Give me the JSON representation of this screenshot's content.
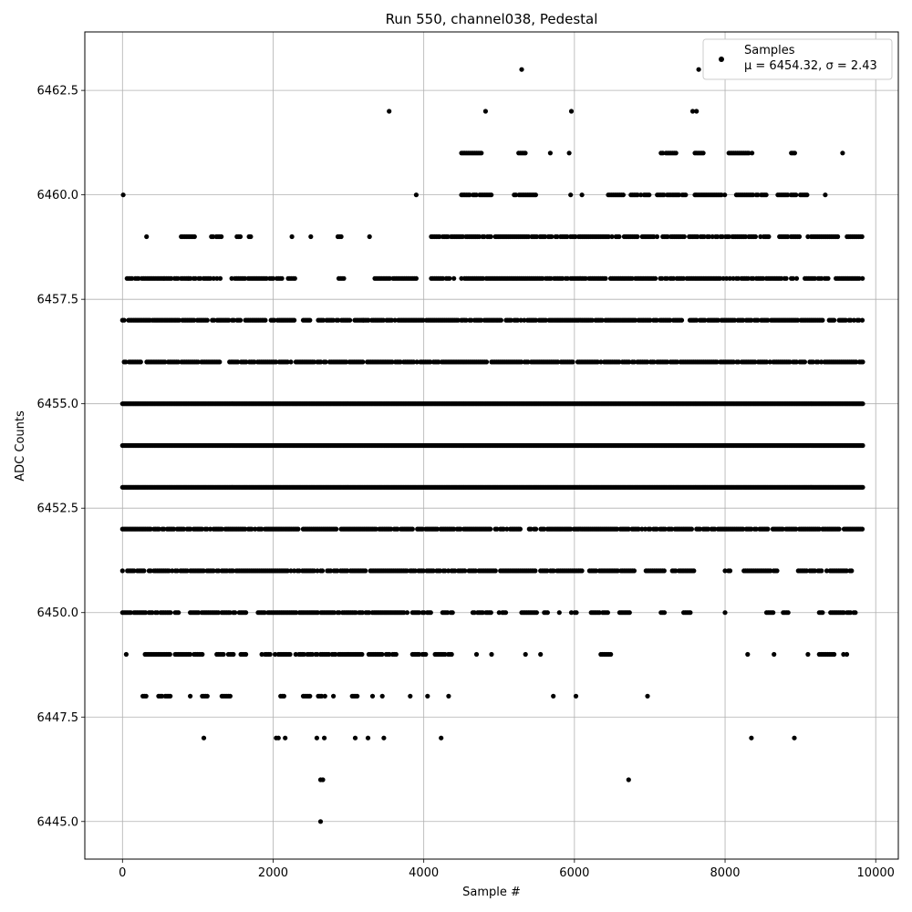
{
  "chart_data": {
    "type": "scatter",
    "title": "Run 550, channel038, Pedestal",
    "xlabel": "Sample #",
    "ylabel": "ADC Counts",
    "xlim": [
      -500,
      10300
    ],
    "ylim": [
      6444.1,
      6463.9
    ],
    "xticks": [
      0,
      2000,
      4000,
      6000,
      8000,
      10000
    ],
    "yticks": [
      6445.0,
      6447.5,
      6450.0,
      6452.5,
      6455.0,
      6457.5,
      6460.0,
      6462.5
    ],
    "xtick_labels": [
      "0",
      "2000",
      "4000",
      "6000",
      "8000",
      "10000"
    ],
    "ytick_labels": [
      "6445.0",
      "6447.5",
      "6450.0",
      "6452.5",
      "6455.0",
      "6457.5",
      "6460.0",
      "6462.5"
    ],
    "grid": true,
    "legend": {
      "position": "top-right",
      "entries": [
        "Samples",
        "μ = 6454.32, σ = 2.43"
      ]
    },
    "series": [
      {
        "name": "Samples",
        "color": "#000000",
        "mu": 6454.32,
        "sigma": 2.43,
        "n_samples": 9840,
        "levels_min": 6445,
        "levels_max": 6463
      }
    ],
    "sparse_points": [
      {
        "x": 10,
        "y": 6460
      },
      {
        "x": 5300,
        "y": 6463
      },
      {
        "x": 7650,
        "y": 6463
      },
      {
        "x": 7780,
        "y": 6463
      },
      {
        "x": 3540,
        "y": 6462
      },
      {
        "x": 4820,
        "y": 6462
      },
      {
        "x": 5960,
        "y": 6462
      },
      {
        "x": 7570,
        "y": 6462
      },
      {
        "x": 7620,
        "y": 6462
      },
      {
        "x": 2630,
        "y": 6445
      },
      {
        "x": 2630,
        "y": 6446
      },
      {
        "x": 2660,
        "y": 6446
      },
      {
        "x": 6720,
        "y": 6446
      },
      {
        "x": 1080,
        "y": 6447
      },
      {
        "x": 2040,
        "y": 6447
      },
      {
        "x": 2070,
        "y": 6447
      },
      {
        "x": 2160,
        "y": 6447
      },
      {
        "x": 2580,
        "y": 6447
      },
      {
        "x": 2680,
        "y": 6447
      },
      {
        "x": 3090,
        "y": 6447
      },
      {
        "x": 3260,
        "y": 6447
      },
      {
        "x": 3470,
        "y": 6447
      },
      {
        "x": 4230,
        "y": 6447
      },
      {
        "x": 8350,
        "y": 6447
      },
      {
        "x": 8920,
        "y": 6447
      }
    ],
    "band_ranges": [
      {
        "y": 6461,
        "segments": [
          [
            4500,
            4780
          ],
          [
            5260,
            5360
          ],
          [
            5680,
            5700
          ],
          [
            5930,
            5960
          ],
          [
            7150,
            7350
          ],
          [
            7600,
            7720
          ],
          [
            8050,
            8380
          ],
          [
            8880,
            8930
          ],
          [
            9560,
            9580
          ]
        ]
      },
      {
        "y": 6460,
        "segments": [
          [
            3900,
            3920
          ],
          [
            4500,
            4700
          ],
          [
            4720,
            4900
          ],
          [
            5200,
            5520
          ],
          [
            5950,
            5970
          ],
          [
            6100,
            6120
          ],
          [
            6450,
            6650
          ],
          [
            6750,
            7000
          ],
          [
            7100,
            7280
          ],
          [
            7300,
            7480
          ],
          [
            7600,
            8000
          ],
          [
            8150,
            8550
          ],
          [
            8700,
            8960
          ],
          [
            9000,
            9100
          ],
          [
            9330,
            9360
          ]
        ]
      },
      {
        "y": 6459,
        "segments": [
          [
            320,
            340
          ],
          [
            780,
            960
          ],
          [
            1180,
            1320
          ],
          [
            1520,
            1580
          ],
          [
            1680,
            1720
          ],
          [
            2250,
            2270
          ],
          [
            2500,
            2520
          ],
          [
            2860,
            2920
          ],
          [
            3280,
            3300
          ],
          [
            4100,
            4520
          ],
          [
            4560,
            4900
          ],
          [
            4950,
            5700
          ],
          [
            5750,
            6500
          ],
          [
            6550,
            6850
          ],
          [
            6900,
            7100
          ],
          [
            7150,
            8600
          ],
          [
            8700,
            9000
          ],
          [
            9100,
            9500
          ],
          [
            9620,
            9830
          ]
        ]
      },
      {
        "y": 6458,
        "segments": [
          [
            60,
            560
          ],
          [
            560,
            880
          ],
          [
            880,
            1300
          ],
          [
            1450,
            2000
          ],
          [
            2050,
            2120
          ],
          [
            2200,
            2300
          ],
          [
            2850,
            2950
          ],
          [
            3350,
            3900
          ],
          [
            4100,
            4350
          ],
          [
            4400,
            4420
          ],
          [
            4500,
            8900
          ],
          [
            8950,
            9400
          ],
          [
            9450,
            9840
          ]
        ]
      },
      {
        "y": 6457,
        "segments": [
          [
            0,
            40
          ],
          [
            80,
            400
          ],
          [
            400,
            1900
          ],
          [
            1950,
            2300
          ],
          [
            2400,
            2500
          ],
          [
            2600,
            3200
          ],
          [
            3200,
            9840
          ]
        ]
      },
      {
        "y": 6456,
        "segments": [
          [
            0,
            250
          ],
          [
            300,
            1300
          ],
          [
            1400,
            2700
          ],
          [
            2750,
            3200
          ],
          [
            3250,
            9840
          ]
        ]
      },
      {
        "y": 6455,
        "segments": [
          [
            0,
            9840
          ]
        ]
      },
      {
        "y": 6454,
        "segments": [
          [
            0,
            9840
          ]
        ]
      },
      {
        "y": 6453,
        "segments": [
          [
            0,
            9840
          ]
        ]
      },
      {
        "y": 6452,
        "segments": [
          [
            0,
            4900
          ],
          [
            4950,
            5300
          ],
          [
            5400,
            9840
          ]
        ]
      },
      {
        "y": 6451,
        "segments": [
          [
            0,
            1400
          ],
          [
            1400,
            4550
          ],
          [
            4600,
            5500
          ],
          [
            5550,
            6100
          ],
          [
            6200,
            6800
          ],
          [
            6950,
            7200
          ],
          [
            7300,
            7600
          ],
          [
            8000,
            8100
          ],
          [
            8250,
            8700
          ],
          [
            8950,
            9300
          ],
          [
            9350,
            9700
          ]
        ]
      },
      {
        "y": 6450,
        "segments": [
          [
            0,
            650
          ],
          [
            700,
            750
          ],
          [
            900,
            1500
          ],
          [
            1550,
            1650
          ],
          [
            1800,
            3800
          ],
          [
            3850,
            4100
          ],
          [
            4250,
            4400
          ],
          [
            4650,
            4900
          ],
          [
            5000,
            5100
          ],
          [
            5300,
            5500
          ],
          [
            5600,
            5650
          ],
          [
            5800,
            5820
          ],
          [
            5960,
            6050
          ],
          [
            6200,
            6450
          ],
          [
            6600,
            6750
          ],
          [
            7150,
            7200
          ],
          [
            7450,
            7550
          ],
          [
            8000,
            8030
          ],
          [
            8550,
            8650
          ],
          [
            8750,
            8850
          ],
          [
            9250,
            9300
          ],
          [
            9400,
            9750
          ]
        ]
      },
      {
        "y": 6449,
        "segments": [
          [
            50,
            70
          ],
          [
            300,
            650
          ],
          [
            700,
            900
          ],
          [
            950,
            1100
          ],
          [
            1230,
            1480
          ],
          [
            1550,
            1650
          ],
          [
            1850,
            2250
          ],
          [
            2300,
            3200
          ],
          [
            3270,
            3450
          ],
          [
            3500,
            3650
          ],
          [
            3850,
            4050
          ],
          [
            4150,
            4400
          ],
          [
            4700,
            4720
          ],
          [
            4900,
            4920
          ],
          [
            5350,
            5370
          ],
          [
            5550,
            5570
          ],
          [
            6350,
            6500
          ],
          [
            8300,
            8320
          ],
          [
            8650,
            8670
          ],
          [
            9100,
            9120
          ],
          [
            9250,
            9450
          ],
          [
            9550,
            9620
          ]
        ]
      },
      {
        "y": 6448,
        "segments": [
          [
            270,
            320
          ],
          [
            480,
            650
          ],
          [
            900,
            920
          ],
          [
            1060,
            1130
          ],
          [
            1320,
            1440
          ],
          [
            2100,
            2160
          ],
          [
            2400,
            2500
          ],
          [
            2600,
            2700
          ],
          [
            2800,
            2820
          ],
          [
            3050,
            3130
          ],
          [
            3320,
            3340
          ],
          [
            3450,
            3470
          ],
          [
            3820,
            3840
          ],
          [
            4050,
            4070
          ],
          [
            4330,
            4350
          ],
          [
            5720,
            5740
          ],
          [
            6020,
            6040
          ],
          [
            6970,
            6990
          ]
        ]
      }
    ]
  }
}
